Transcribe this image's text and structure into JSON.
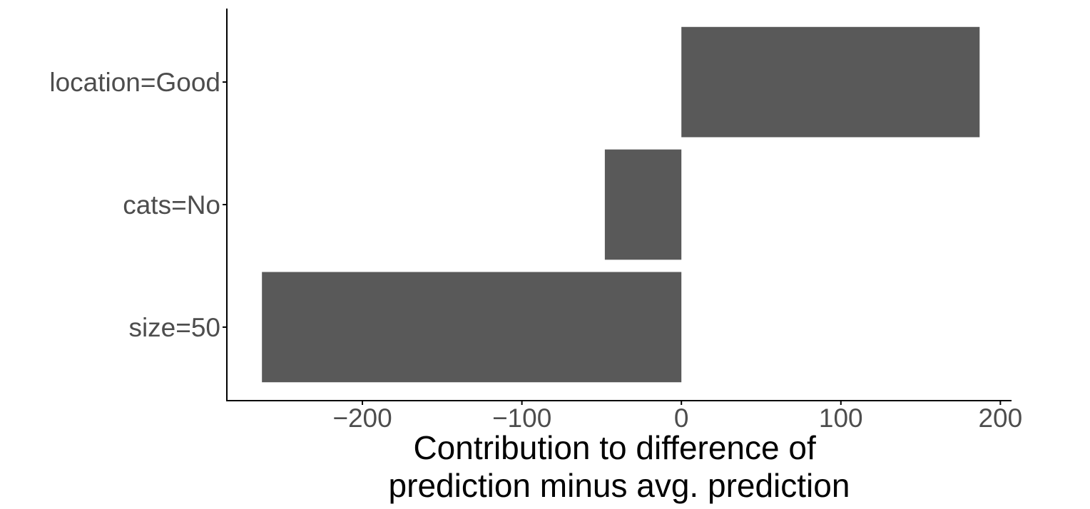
{
  "chart_data": {
    "type": "bar",
    "orientation": "horizontal",
    "categories": [
      "location=Good",
      "cats=No",
      "size=50"
    ],
    "values": [
      187,
      -48,
      -263
    ],
    "xlabel": "Contribution to difference of\nprediction minus avg. prediction",
    "ylabel": "",
    "xlim": [
      -285,
      207
    ],
    "xticks": [
      -200,
      -100,
      0,
      100,
      200
    ],
    "xtick_labels": [
      "−200",
      "−100",
      "0",
      "100",
      "200"
    ],
    "grid": false,
    "legend": "none",
    "colors": {
      "bar": "#595959",
      "axis": "#000000",
      "tick_label": "#4d4d4d"
    }
  }
}
